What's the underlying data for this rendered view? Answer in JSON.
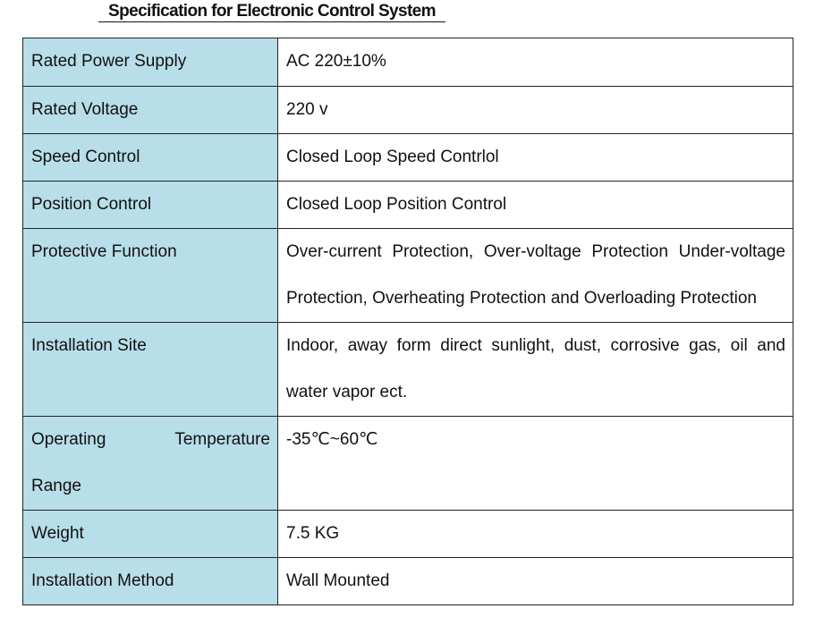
{
  "title": "Specification for Electronic Control System",
  "rows": [
    {
      "label": "Rated Power Supply",
      "value": "AC 220±10%"
    },
    {
      "label": "Rated Voltage",
      "value": "220 v"
    },
    {
      "label": "Speed Control",
      "value": "Closed Loop Speed Contrlol"
    },
    {
      "label": "Position Control",
      "value": "Closed Loop Position Control"
    },
    {
      "label": "Protective Function",
      "value_line1": "Over-current Protection, Over-voltage Protection Under-voltage",
      "value_line2": "Protection, Overheating Protection and Overloading Protection"
    },
    {
      "label": "Installation Site",
      "value_line1": "Indoor, away form direct sunlight, dust, corrosive gas, oil and",
      "value_line2": "water vapor ect."
    },
    {
      "label_line1": "Operating Temperature",
      "label_line2": "Range",
      "value": "-35℃~60℃"
    },
    {
      "label": "Weight",
      "value": "7.5 KG"
    },
    {
      "label": "Installation Method",
      "value": "Wall Mounted"
    }
  ]
}
